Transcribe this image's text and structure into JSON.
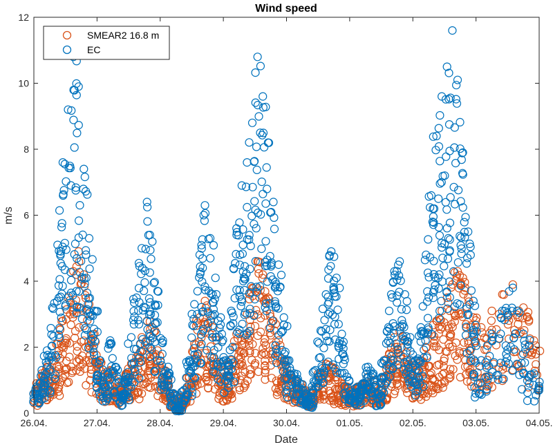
{
  "chart_data": {
    "type": "scatter",
    "title": "Wind speed",
    "xlabel": "Date",
    "ylabel": "m/s",
    "ylim": [
      0,
      12
    ],
    "yticks": [
      0,
      2,
      4,
      6,
      8,
      10,
      12
    ],
    "xlim": [
      "26.04.",
      "04.05."
    ],
    "xticks": [
      "26.04.",
      "27.04.",
      "28.04.",
      "29.04.",
      "30.04.",
      "01.05.",
      "02.05.",
      "03.05.",
      "04.05."
    ],
    "grid": false,
    "legend_position": "top-left",
    "series": [
      {
        "name": "SMEAR2 16.8 m",
        "marker": "open-circle",
        "color": "#D95319",
        "x": [
          "26.04.",
          "26.04.",
          "26.04.",
          "26.04.",
          "26.04.",
          "26.04.",
          "26.04.",
          "26.04.",
          "26.04.",
          "26.04.",
          "26.04.",
          "26.04.",
          "27.04.",
          "27.04.",
          "27.04.",
          "27.04.",
          "27.04.",
          "27.04.",
          "27.04.",
          "27.04.",
          "27.04.",
          "27.04.",
          "27.04.",
          "27.04.",
          "28.04.",
          "28.04.",
          "28.04.",
          "28.04.",
          "28.04.",
          "28.04.",
          "28.04.",
          "28.04.",
          "28.04.",
          "28.04.",
          "28.04.",
          "28.04.",
          "29.04.",
          "29.04.",
          "29.04.",
          "29.04.",
          "29.04.",
          "29.04.",
          "29.04.",
          "29.04.",
          "29.04.",
          "29.04.",
          "29.04.",
          "29.04.",
          "30.04.",
          "30.04.",
          "30.04.",
          "30.04.",
          "30.04.",
          "30.04.",
          "30.04.",
          "30.04.",
          "30.04.",
          "30.04.",
          "30.04.",
          "30.04.",
          "01.05.",
          "01.05.",
          "01.05.",
          "01.05.",
          "01.05.",
          "01.05.",
          "01.05.",
          "01.05.",
          "01.05.",
          "01.05.",
          "01.05.",
          "01.05.",
          "02.05.",
          "02.05.",
          "02.05.",
          "02.05.",
          "02.05.",
          "02.05.",
          "02.05.",
          "02.05.",
          "02.05.",
          "02.05.",
          "02.05.",
          "02.05.",
          "03.05.",
          "03.05.",
          "03.05.",
          "03.05.",
          "03.05.",
          "03.05."
        ],
        "y": [
          0.9,
          1.2,
          1.4,
          1.6,
          2.1,
          2.8,
          3.5,
          4.3,
          4.9,
          4.2,
          3.3,
          2.4,
          1.6,
          1.1,
          1.3,
          1.0,
          0.8,
          1.2,
          1.5,
          1.7,
          2.3,
          2.8,
          2.6,
          1.9,
          1.3,
          1.0,
          0.6,
          0.3,
          0.5,
          1.1,
          2.1,
          2.9,
          3.4,
          2.8,
          2.3,
          1.5,
          1.0,
          1.6,
          2.4,
          2.2,
          3.0,
          3.8,
          4.6,
          4.2,
          3.5,
          2.8,
          2.2,
          1.6,
          1.2,
          1.0,
          0.9,
          0.7,
          0.6,
          0.8,
          1.2,
          1.5,
          1.4,
          1.1,
          0.9,
          0.8,
          0.7,
          0.8,
          0.9,
          1.1,
          1.0,
          0.7,
          1.1,
          1.8,
          2.3,
          2.5,
          2.2,
          1.6,
          1.3,
          1.6,
          2.0,
          2.4,
          2.8,
          3.1,
          3.5,
          3.9,
          4.3,
          4.1,
          3.5,
          2.9,
          2.6,
          3.1,
          3.6,
          3.9,
          3.2,
          2.2
        ]
      },
      {
        "name": "EC",
        "marker": "open-circle",
        "color": "#0072BD",
        "x": [
          "26.04.",
          "26.04.",
          "26.04.",
          "26.04.",
          "26.04.",
          "26.04.",
          "26.04.",
          "26.04.",
          "26.04.",
          "26.04.",
          "26.04.",
          "26.04.",
          "27.04.",
          "27.04.",
          "27.04.",
          "27.04.",
          "27.04.",
          "27.04.",
          "27.04.",
          "27.04.",
          "27.04.",
          "27.04.",
          "27.04.",
          "27.04.",
          "28.04.",
          "28.04.",
          "28.04.",
          "28.04.",
          "28.04.",
          "28.04.",
          "28.04.",
          "28.04.",
          "28.04.",
          "28.04.",
          "28.04.",
          "28.04.",
          "29.04.",
          "29.04.",
          "29.04.",
          "29.04.",
          "29.04.",
          "29.04.",
          "29.04.",
          "29.04.",
          "29.04.",
          "29.04.",
          "29.04.",
          "29.04.",
          "30.04.",
          "30.04.",
          "30.04.",
          "30.04.",
          "30.04.",
          "30.04.",
          "30.04.",
          "30.04.",
          "30.04.",
          "30.04.",
          "30.04.",
          "30.04.",
          "01.05.",
          "01.05.",
          "01.05.",
          "01.05.",
          "01.05.",
          "01.05.",
          "01.05.",
          "01.05.",
          "01.05.",
          "01.05.",
          "01.05.",
          "01.05.",
          "02.05.",
          "02.05.",
          "02.05.",
          "02.05.",
          "02.05.",
          "02.05.",
          "02.05.",
          "02.05.",
          "02.05.",
          "02.05.",
          "02.05.",
          "02.05.",
          "03.05.",
          "03.05.",
          "03.05.",
          "03.05.",
          "03.05.",
          "03.05."
        ],
        "y": [
          0.8,
          1.3,
          1.9,
          3.2,
          5.1,
          7.6,
          9.2,
          10.8,
          9.9,
          7.4,
          5.3,
          3.1,
          1.6,
          1.2,
          2.2,
          1.4,
          0.7,
          1.1,
          2.3,
          3.5,
          5.0,
          6.4,
          5.2,
          3.7,
          2.2,
          1.4,
          0.6,
          0.2,
          0.7,
          1.6,
          3.3,
          4.8,
          6.3,
          5.3,
          4.1,
          2.9,
          1.6,
          3.1,
          5.6,
          6.9,
          7.6,
          8.8,
          10.8,
          9.6,
          8.2,
          6.4,
          4.5,
          2.9,
          1.6,
          1.2,
          0.9,
          0.6,
          0.5,
          1.3,
          2.5,
          3.6,
          4.9,
          4.1,
          2.4,
          1.1,
          0.6,
          0.8,
          0.9,
          1.4,
          1.2,
          0.6,
          1.6,
          3.1,
          4.3,
          4.6,
          3.6,
          2.3,
          1.6,
          2.6,
          4.8,
          6.6,
          8.4,
          9.6,
          10.5,
          11.6,
          10.1,
          7.9,
          5.5,
          3.4,
          1.6,
          2.4,
          3.1,
          3.8,
          2.4,
          1.2
        ]
      }
    ]
  }
}
